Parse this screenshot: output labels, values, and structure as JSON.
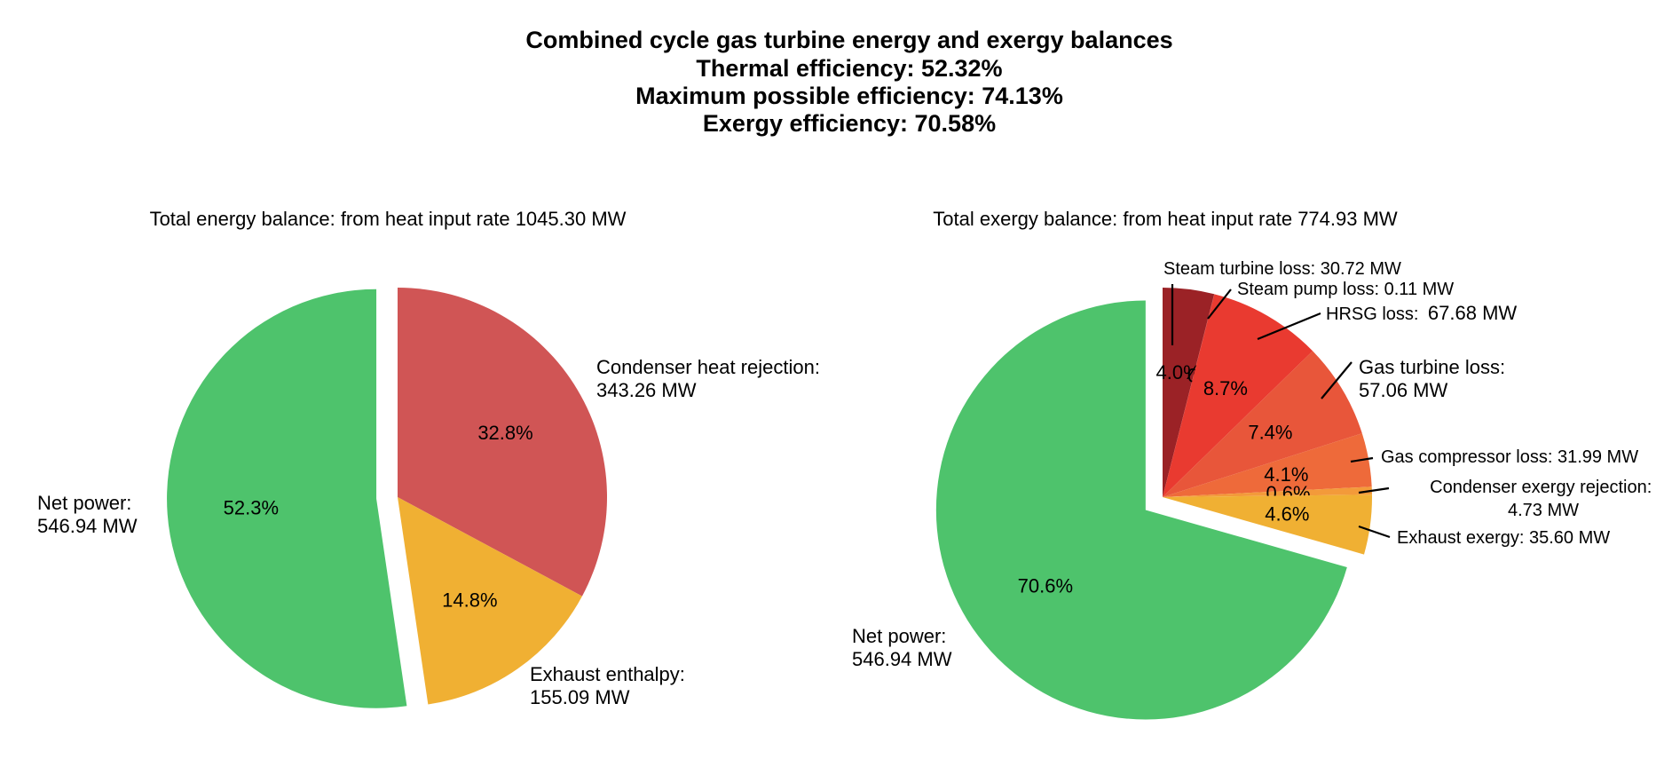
{
  "figure": {
    "title_lines": [
      "Combined cycle gas turbine energy and exergy balances",
      "Thermal efficiency: 52.32%",
      "Maximum possible efficiency: 74.13%",
      "Exergy efficiency: 70.58%"
    ]
  },
  "chart_data": [
    {
      "type": "pie",
      "title": "Total energy balance: from heat input rate 1045.30 MW",
      "start": "top, clockwise",
      "slices": [
        {
          "key": "condenser",
          "label": "Condenser heat rejection:",
          "value_text": "343.26 MW",
          "value": 343.26,
          "pct_label": "32.8%",
          "color": "#d05555",
          "exploded": false
        },
        {
          "key": "exhaust",
          "label": "Exhaust enthalpy:",
          "value_text": "155.09 MW",
          "value": 155.09,
          "pct_label": "14.8%",
          "color": "#f0b033",
          "exploded": false
        },
        {
          "key": "net",
          "label": "Net power:",
          "value_text": "546.94 MW",
          "value": 546.94,
          "pct_label": "52.3%",
          "color": "#4ec36c",
          "exploded": true
        }
      ]
    },
    {
      "type": "pie",
      "title": "Total exergy balance: from heat input rate 774.93 MW",
      "start": "top, clockwise",
      "slices": [
        {
          "key": "steam_turbine",
          "label": "Steam turbine loss: 30.72 MW",
          "value": 30.72,
          "pct_label": "4.0%",
          "color": "#9b2226",
          "exploded": false
        },
        {
          "key": "steam_pump",
          "label": "Steam pump loss: 0.11 MW",
          "value": 0.11,
          "pct_label": "0.0%",
          "color": "#b52a2a",
          "exploded": false
        },
        {
          "key": "hrsg",
          "label": "HRSG loss:",
          "value_text": "67.68 MW",
          "value": 67.68,
          "pct_label": "8.7%",
          "color": "#e93a30",
          "exploded": false
        },
        {
          "key": "gas_turbine",
          "label": "Gas turbine loss:",
          "value_text": "57.06 MW",
          "value": 57.06,
          "pct_label": "7.4%",
          "color": "#e8563a",
          "exploded": false
        },
        {
          "key": "gas_compressor",
          "label": "Gas compressor loss: 31.99 MW",
          "value": 31.99,
          "pct_label": "4.1%",
          "color": "#ee6a3a",
          "exploded": false
        },
        {
          "key": "condenser_exergy",
          "label": "Condenser exergy rejection:",
          "value_text": "4.73 MW",
          "value": 4.73,
          "pct_label": "0.6%",
          "color": "#f39a3a",
          "exploded": false
        },
        {
          "key": "exhaust_exergy",
          "label": "Exhaust exergy: 35.60 MW",
          "value": 35.6,
          "pct_label": "4.6%",
          "color": "#f0b033",
          "exploded": false
        },
        {
          "key": "net",
          "label": "Net power:",
          "value_text": "546.94 MW",
          "value": 546.94,
          "pct_label": "70.6%",
          "color": "#4ec36c",
          "exploded": true
        }
      ]
    }
  ]
}
